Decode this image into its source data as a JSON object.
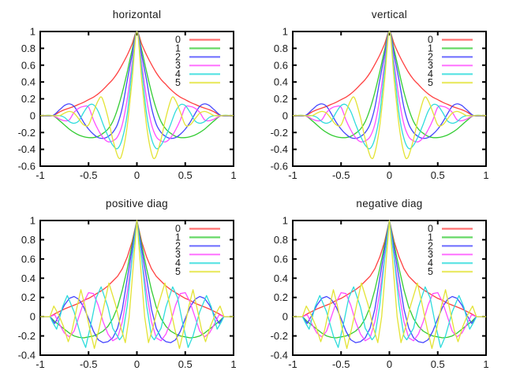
{
  "figure": {
    "background": "#ffffff",
    "text_color": "#1a1a1a",
    "frame_color": "#000000"
  },
  "chart_data": [
    {
      "type": "line",
      "title": "horizontal",
      "xlim": [
        -1,
        1
      ],
      "ylim": [
        -0.6,
        1
      ],
      "xticks": [
        -1,
        -0.5,
        0,
        0.5,
        1
      ],
      "xticklabels": [
        "-1",
        "-0.5",
        "0",
        "0.5",
        "1"
      ],
      "yticks": [
        1,
        0.8,
        0.6,
        0.4,
        0.2,
        0,
        -0.2,
        -0.4,
        -0.6
      ],
      "yticklabels": [
        "1",
        "0.8",
        "0.6",
        "0.4",
        "0.2",
        "0",
        "-0.2",
        "-0.4",
        "-0.6"
      ],
      "grid": false,
      "legend_position": "top-right-inside",
      "legend_labels": [
        "0",
        "1",
        "2",
        "3",
        "4",
        "5"
      ],
      "series_set": "axis",
      "interpolation": "smooth"
    },
    {
      "type": "line",
      "title": "vertical",
      "xlim": [
        -1,
        1
      ],
      "ylim": [
        -0.6,
        1
      ],
      "xticks": [
        -1,
        -0.5,
        0,
        0.5,
        1
      ],
      "xticklabels": [
        "-1",
        "-0.5",
        "0",
        "0.5",
        "1"
      ],
      "yticks": [
        1,
        0.8,
        0.6,
        0.4,
        0.2,
        0,
        -0.2,
        -0.4,
        -0.6
      ],
      "yticklabels": [
        "1",
        "0.8",
        "0.6",
        "0.4",
        "0.2",
        "0",
        "-0.2",
        "-0.4",
        "-0.6"
      ],
      "grid": false,
      "legend_position": "top-right-inside",
      "legend_labels": [
        "0",
        "1",
        "2",
        "3",
        "4",
        "5"
      ],
      "series_set": "axis",
      "interpolation": "smooth"
    },
    {
      "type": "line",
      "title": "positive diag",
      "xlim": [
        -1,
        1
      ],
      "ylim": [
        -0.4,
        1
      ],
      "xticks": [
        -1,
        -0.5,
        0,
        0.5,
        1
      ],
      "xticklabels": [
        "-1",
        "-0.5",
        "0",
        "0.5",
        "1"
      ],
      "yticks": [
        1,
        0.8,
        0.6,
        0.4,
        0.2,
        0,
        -0.2,
        -0.4
      ],
      "yticklabels": [
        "1",
        "0.8",
        "0.6",
        "0.4",
        "0.2",
        "0",
        "-0.2",
        "-0.4"
      ],
      "grid": false,
      "legend_position": "top-right-inside",
      "legend_labels": [
        "0",
        "1",
        "2",
        "3",
        "4",
        "5"
      ],
      "series_set": "diagonal",
      "interpolation": "linear"
    },
    {
      "type": "line",
      "title": "negative diag",
      "xlim": [
        -1,
        1
      ],
      "ylim": [
        -0.4,
        1
      ],
      "xticks": [
        -1,
        -0.5,
        0,
        0.5,
        1
      ],
      "xticklabels": [
        "-1",
        "-0.5",
        "0",
        "0.5",
        "1"
      ],
      "yticks": [
        1,
        0.8,
        0.6,
        0.4,
        0.2,
        0,
        -0.2,
        -0.4
      ],
      "yticklabels": [
        "1",
        "0.8",
        "0.6",
        "0.4",
        "0.2",
        "0",
        "-0.2",
        "-0.4"
      ],
      "grid": false,
      "legend_position": "top-right-inside",
      "legend_labels": [
        "0",
        "1",
        "2",
        "3",
        "4",
        "5"
      ],
      "series_set": "diagonal",
      "interpolation": "linear"
    }
  ],
  "series_sets": {
    "note": "curves are even-symmetric; points given for x>=0 and mirrored to x<0",
    "axis": [
      {
        "name": "0",
        "color": "#ff4040",
        "points": [
          [
            0,
            1
          ],
          [
            0.05,
            0.85
          ],
          [
            0.1,
            0.72
          ],
          [
            0.15,
            0.61
          ],
          [
            0.2,
            0.51
          ],
          [
            0.25,
            0.43
          ],
          [
            0.3,
            0.37
          ],
          [
            0.35,
            0.31
          ],
          [
            0.4,
            0.26
          ],
          [
            0.45,
            0.22
          ],
          [
            0.5,
            0.19
          ],
          [
            0.55,
            0.16
          ],
          [
            0.6,
            0.135
          ],
          [
            0.65,
            0.11
          ],
          [
            0.7,
            0.09
          ],
          [
            0.75,
            0.07
          ],
          [
            0.8,
            0.045
          ],
          [
            0.875,
            0
          ],
          [
            1,
            0
          ]
        ]
      },
      {
        "name": "1",
        "color": "#33cc33",
        "points": [
          [
            0,
            1
          ],
          [
            0.05,
            0.78
          ],
          [
            0.1,
            0.52
          ],
          [
            0.15,
            0.28
          ],
          [
            0.2,
            0.08
          ],
          [
            0.25,
            -0.07
          ],
          [
            0.3,
            -0.16
          ],
          [
            0.35,
            -0.21
          ],
          [
            0.4,
            -0.245
          ],
          [
            0.45,
            -0.26
          ],
          [
            0.5,
            -0.26
          ],
          [
            0.55,
            -0.25
          ],
          [
            0.6,
            -0.23
          ],
          [
            0.65,
            -0.2
          ],
          [
            0.7,
            -0.16
          ],
          [
            0.75,
            -0.11
          ],
          [
            0.8,
            -0.06
          ],
          [
            0.875,
            0
          ],
          [
            1,
            0
          ]
        ]
      },
      {
        "name": "2",
        "color": "#4444ff",
        "points": [
          [
            0,
            1
          ],
          [
            0.05,
            0.72
          ],
          [
            0.1,
            0.42
          ],
          [
            0.15,
            0.1
          ],
          [
            0.2,
            -0.1
          ],
          [
            0.25,
            -0.2
          ],
          [
            0.3,
            -0.25
          ],
          [
            0.35,
            -0.27
          ],
          [
            0.4,
            -0.26
          ],
          [
            0.45,
            -0.22
          ],
          [
            0.5,
            -0.16
          ],
          [
            0.55,
            -0.08
          ],
          [
            0.6,
            0.02
          ],
          [
            0.65,
            0.11
          ],
          [
            0.7,
            0.14
          ],
          [
            0.75,
            0.12
          ],
          [
            0.8,
            0.07
          ],
          [
            0.875,
            0
          ],
          [
            1,
            0
          ]
        ]
      },
      {
        "name": "3",
        "color": "#ff4dff",
        "points": [
          [
            0,
            1
          ],
          [
            0.05,
            0.62
          ],
          [
            0.1,
            0.2
          ],
          [
            0.15,
            -0.1
          ],
          [
            0.2,
            -0.25
          ],
          [
            0.25,
            -0.3
          ],
          [
            0.3,
            -0.31
          ],
          [
            0.35,
            -0.26
          ],
          [
            0.4,
            -0.17
          ],
          [
            0.45,
            -0.05
          ],
          [
            0.5,
            0.1
          ],
          [
            0.55,
            0.11
          ],
          [
            0.6,
            0.09
          ],
          [
            0.65,
            0.04
          ],
          [
            0.7,
            -0.05
          ],
          [
            0.75,
            -0.06
          ],
          [
            0.8,
            -0.04
          ],
          [
            0.875,
            0
          ],
          [
            1,
            0
          ]
        ]
      },
      {
        "name": "4",
        "color": "#2edcdc",
        "points": [
          [
            0,
            1
          ],
          [
            0.05,
            0.55
          ],
          [
            0.1,
            0.02
          ],
          [
            0.15,
            -0.27
          ],
          [
            0.2,
            -0.39
          ],
          [
            0.25,
            -0.35
          ],
          [
            0.3,
            -0.24
          ],
          [
            0.35,
            -0.1
          ],
          [
            0.4,
            0.05
          ],
          [
            0.45,
            0.13
          ],
          [
            0.5,
            0.12
          ],
          [
            0.55,
            0.04
          ],
          [
            0.6,
            -0.06
          ],
          [
            0.65,
            -0.09
          ],
          [
            0.7,
            -0.07
          ],
          [
            0.75,
            -0.02
          ],
          [
            0.8,
            0
          ],
          [
            0.875,
            0
          ],
          [
            1,
            0
          ]
        ]
      },
      {
        "name": "5",
        "color": "#e3e334",
        "points": [
          [
            0,
            1
          ],
          [
            0.05,
            0.42
          ],
          [
            0.1,
            -0.12
          ],
          [
            0.15,
            -0.44
          ],
          [
            0.19,
            -0.5
          ],
          [
            0.25,
            -0.28
          ],
          [
            0.3,
            -0.02
          ],
          [
            0.36,
            0.21
          ],
          [
            0.4,
            0.18
          ],
          [
            0.45,
            0.04
          ],
          [
            0.5,
            -0.11
          ],
          [
            0.55,
            -0.11
          ],
          [
            0.6,
            -0.04
          ],
          [
            0.65,
            0.03
          ],
          [
            0.7,
            0.05
          ],
          [
            0.75,
            0.03
          ],
          [
            0.8,
            0
          ],
          [
            0.875,
            0
          ],
          [
            1,
            0
          ]
        ]
      }
    ],
    "diagonal": [
      {
        "name": "0",
        "color": "#ff4040",
        "points": [
          [
            0,
            1
          ],
          [
            0.05,
            0.78
          ],
          [
            0.1,
            0.62
          ],
          [
            0.15,
            0.5
          ],
          [
            0.2,
            0.42
          ],
          [
            0.25,
            0.37
          ],
          [
            0.3,
            0.32
          ],
          [
            0.35,
            0.28
          ],
          [
            0.4,
            0.25
          ],
          [
            0.45,
            0.22
          ],
          [
            0.5,
            0.19
          ],
          [
            0.55,
            0.17
          ],
          [
            0.6,
            0.14
          ],
          [
            0.65,
            0.12
          ],
          [
            0.7,
            0.1
          ],
          [
            0.75,
            0.08
          ],
          [
            0.8,
            0.055
          ],
          [
            0.85,
            0.03
          ],
          [
            0.9,
            0
          ],
          [
            1,
            0
          ]
        ]
      },
      {
        "name": "1",
        "color": "#33cc33",
        "points": [
          [
            0,
            1
          ],
          [
            0.05,
            0.75
          ],
          [
            0.1,
            0.5
          ],
          [
            0.15,
            0.28
          ],
          [
            0.2,
            0.1
          ],
          [
            0.25,
            -0.02
          ],
          [
            0.3,
            -0.1
          ],
          [
            0.35,
            -0.15
          ],
          [
            0.4,
            -0.18
          ],
          [
            0.45,
            -0.2
          ],
          [
            0.5,
            -0.21
          ],
          [
            0.55,
            -0.22
          ],
          [
            0.6,
            -0.215
          ],
          [
            0.65,
            -0.2
          ],
          [
            0.7,
            -0.17
          ],
          [
            0.75,
            -0.13
          ],
          [
            0.8,
            -0.09
          ],
          [
            0.85,
            -0.05
          ],
          [
            0.9,
            0
          ],
          [
            1,
            0
          ]
        ]
      },
      {
        "name": "2",
        "color": "#4444ff",
        "points": [
          [
            0,
            1
          ],
          [
            0.05,
            0.7
          ],
          [
            0.1,
            0.4
          ],
          [
            0.15,
            0.08
          ],
          [
            0.2,
            -0.12
          ],
          [
            0.25,
            -0.22
          ],
          [
            0.3,
            -0.26
          ],
          [
            0.35,
            -0.27
          ],
          [
            0.4,
            -0.24
          ],
          [
            0.45,
            -0.15
          ],
          [
            0.5,
            -0.02
          ],
          [
            0.55,
            0.1
          ],
          [
            0.6,
            0.18
          ],
          [
            0.65,
            0.21
          ],
          [
            0.7,
            0.19
          ],
          [
            0.75,
            0.12
          ],
          [
            0.8,
            0.02
          ],
          [
            0.85,
            -0.07
          ],
          [
            0.9,
            0
          ],
          [
            1,
            0
          ]
        ]
      },
      {
        "name": "3",
        "color": "#ff4dff",
        "points": [
          [
            0,
            1
          ],
          [
            0.05,
            0.62
          ],
          [
            0.1,
            0.25
          ],
          [
            0.15,
            -0.05
          ],
          [
            0.2,
            -0.22
          ],
          [
            0.25,
            -0.25
          ],
          [
            0.3,
            -0.18
          ],
          [
            0.35,
            -0.05
          ],
          [
            0.4,
            0.12
          ],
          [
            0.45,
            0.24
          ],
          [
            0.5,
            0.25
          ],
          [
            0.55,
            0.15
          ],
          [
            0.6,
            0
          ],
          [
            0.65,
            -0.15
          ],
          [
            0.7,
            -0.21
          ],
          [
            0.75,
            -0.17
          ],
          [
            0.8,
            -0.08
          ],
          [
            0.85,
            0.02
          ],
          [
            0.9,
            0
          ],
          [
            1,
            0
          ]
        ]
      },
      {
        "name": "4",
        "color": "#2edcdc",
        "points": [
          [
            0,
            1
          ],
          [
            0.05,
            0.6
          ],
          [
            0.1,
            0.12
          ],
          [
            0.15,
            -0.2
          ],
          [
            0.18,
            -0.24
          ],
          [
            0.25,
            -0.12
          ],
          [
            0.3,
            0.1
          ],
          [
            0.37,
            0.31
          ],
          [
            0.42,
            0.2
          ],
          [
            0.47,
            -0.05
          ],
          [
            0.53,
            -0.32
          ],
          [
            0.58,
            -0.2
          ],
          [
            0.65,
            0.05
          ],
          [
            0.72,
            0.22
          ],
          [
            0.77,
            0.1
          ],
          [
            0.83,
            -0.13
          ],
          [
            0.87,
            -0.06
          ],
          [
            0.9,
            0
          ],
          [
            1,
            0
          ]
        ]
      },
      {
        "name": "5",
        "color": "#e3e334",
        "points": [
          [
            0,
            1
          ],
          [
            0.04,
            0.5
          ],
          [
            0.08,
            0
          ],
          [
            0.12,
            -0.27
          ],
          [
            0.17,
            -0.1
          ],
          [
            0.22,
            0.12
          ],
          [
            0.29,
            0.35
          ],
          [
            0.34,
            0.12
          ],
          [
            0.39,
            -0.12
          ],
          [
            0.44,
            -0.33
          ],
          [
            0.49,
            -0.12
          ],
          [
            0.54,
            0.12
          ],
          [
            0.58,
            0.28
          ],
          [
            0.63,
            0.05
          ],
          [
            0.67,
            -0.14
          ],
          [
            0.71,
            -0.26
          ],
          [
            0.76,
            -0.1
          ],
          [
            0.81,
            0.02
          ],
          [
            0.86,
            0.11
          ],
          [
            0.9,
            0
          ],
          [
            1,
            0
          ]
        ]
      }
    ]
  }
}
